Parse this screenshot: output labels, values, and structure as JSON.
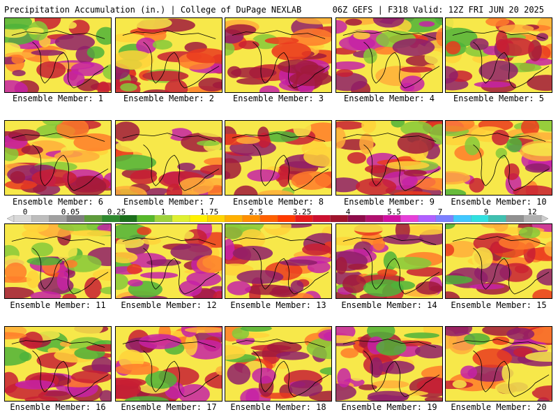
{
  "header": {
    "left": "Precipitation Accumulation (in.) | College of DuPage NEXLAB",
    "right": "06Z GEFS | F318 Valid: 12Z FRI JUN 20 2025"
  },
  "members": [
    "Ensemble Member: 1",
    "Ensemble Member: 2",
    "Ensemble Member: 3",
    "Ensemble Member: 4",
    "Ensemble Member: 5",
    "Ensemble Member: 6",
    "Ensemble Member: 7",
    "Ensemble Member: 8",
    "Ensemble Member: 9",
    "Ensemble Member: 10",
    "Ensemble Member: 11",
    "Ensemble Member: 12",
    "Ensemble Member: 13",
    "Ensemble Member: 14",
    "Ensemble Member: 15",
    "Ensemble Member: 16",
    "Ensemble Member: 17",
    "Ensemble Member: 18",
    "Ensemble Member: 19",
    "Ensemble Member: 20"
  ],
  "colorbar": {
    "tick_labels": [
      "0",
      "0.05",
      "0.25",
      "1",
      "1.75",
      "2.5",
      "3.25",
      "4",
      "5.5",
      "7",
      "9",
      "12"
    ],
    "colors": [
      "#d9d9d9",
      "#bdbdbd",
      "#a0a0a0",
      "#7e7e7e",
      "#5e9c3c",
      "#2f8a2f",
      "#1b6f1b",
      "#56b82a",
      "#9fd33c",
      "#dff031",
      "#fff200",
      "#ffd400",
      "#ffb000",
      "#ff8f00",
      "#ff6000",
      "#ff3a00",
      "#e61a1a",
      "#cc1030",
      "#a0142c",
      "#8e0c4a",
      "#b0106e",
      "#d010a0",
      "#e640d8",
      "#b060ff",
      "#7c80ff",
      "#40c8ff",
      "#30e0e0",
      "#40c0b0",
      "#909090",
      "#b0b0b0"
    ]
  }
}
